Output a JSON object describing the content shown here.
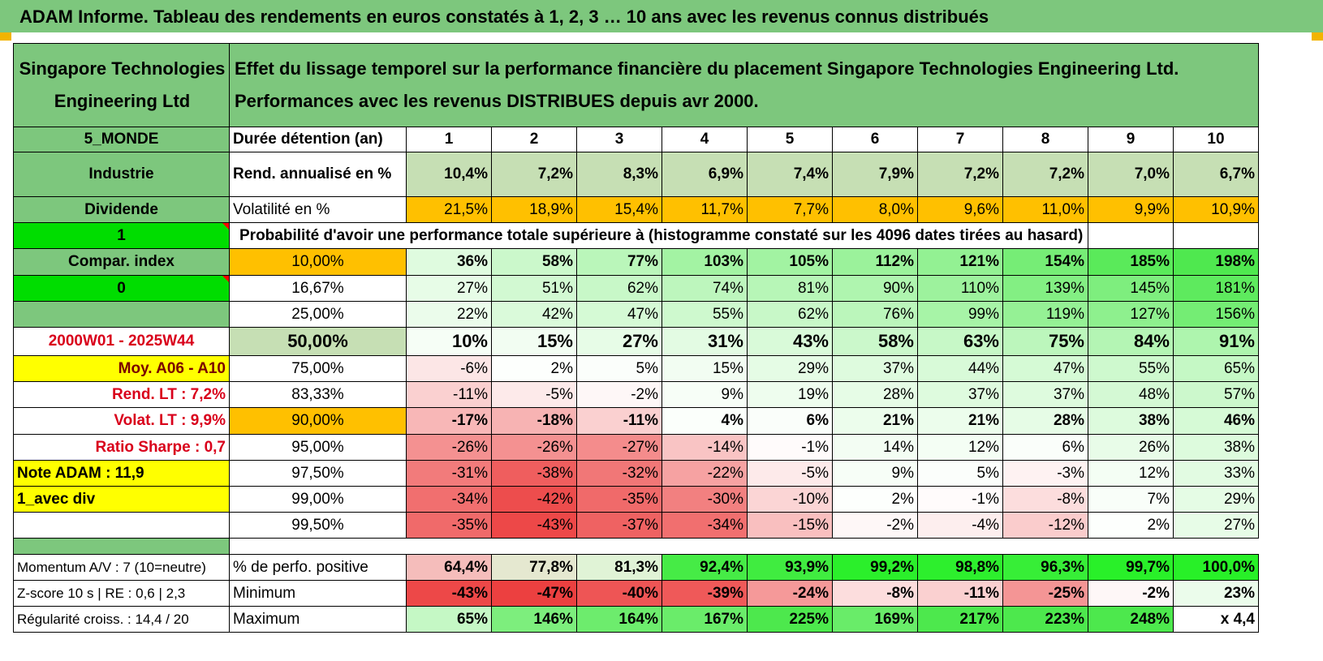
{
  "title": "ADAM Informe. Tableau des rendements en euros constatés à 1, 2, 3 … 10 ans avec les revenus connus distribués",
  "header": {
    "company": "Singapore Technologies Engineering Ltd",
    "description": "Effet du lissage temporel sur la performance financière du placement Singapore Technologies Engineering Ltd. Performances avec les revenus DISTRIBUES depuis avr 2000."
  },
  "side": {
    "region": "5_MONDE",
    "sector": "Industrie",
    "dividend_label": "Dividende",
    "dividend_value": "1",
    "compar_label": "Compar. index",
    "compar_value": "0",
    "period": "2000W01 - 2025W44",
    "moy": "Moy. A06 - A10",
    "rend_lt": "Rend. LT :   7,2%",
    "volat_lt": "Volat. LT :   9,9%",
    "sharpe": "Ratio Sharpe :    0,7",
    "note": "Note ADAM : 11,9",
    "avec_div": "1_avec div",
    "momentum": "Momentum A/V : 7 (10=neutre)",
    "zscore": "Z-score 10 s | RE : 0,6 | 2,3",
    "regularite": "Régularité croiss. : 14,4 / 20"
  },
  "labels": {
    "duree": "Durée détention (an)",
    "rend": "Rend. annualisé en %",
    "vol": "Volatilité en %",
    "proba": "Probabilité d'avoir une performance totale supérieure à (histogramme constaté sur les 4096 dates tirées au hasard)",
    "perfo": "% de perfo. positive",
    "min": "Minimum",
    "max": "Maximum"
  },
  "years": [
    "1",
    "2",
    "3",
    "4",
    "5",
    "6",
    "7",
    "8",
    "9",
    "10"
  ],
  "rend": [
    "10,4%",
    "7,2%",
    "8,3%",
    "6,9%",
    "7,4%",
    "7,9%",
    "7,2%",
    "7,2%",
    "7,0%",
    "6,7%"
  ],
  "vol": [
    "21,5%",
    "18,9%",
    "15,4%",
    "11,7%",
    "7,7%",
    "8,0%",
    "9,6%",
    "11,0%",
    "9,9%",
    "10,9%"
  ],
  "prob_rows": [
    {
      "p": "10,00%",
      "v": [
        "36%",
        "58%",
        "77%",
        "103%",
        "105%",
        "112%",
        "121%",
        "154%",
        "185%",
        "198%"
      ]
    },
    {
      "p": "16,67%",
      "v": [
        "27%",
        "51%",
        "62%",
        "74%",
        "81%",
        "90%",
        "110%",
        "139%",
        "145%",
        "181%"
      ]
    },
    {
      "p": "25,00%",
      "v": [
        "22%",
        "42%",
        "47%",
        "55%",
        "62%",
        "76%",
        "99%",
        "119%",
        "127%",
        "156%"
      ]
    },
    {
      "p": "50,00%",
      "v": [
        "10%",
        "15%",
        "27%",
        "31%",
        "43%",
        "58%",
        "63%",
        "75%",
        "84%",
        "91%"
      ]
    },
    {
      "p": "75,00%",
      "v": [
        "-6%",
        "2%",
        "5%",
        "15%",
        "29%",
        "37%",
        "44%",
        "47%",
        "55%",
        "65%"
      ]
    },
    {
      "p": "83,33%",
      "v": [
        "-11%",
        "-5%",
        "-2%",
        "9%",
        "19%",
        "28%",
        "37%",
        "37%",
        "48%",
        "57%"
      ]
    },
    {
      "p": "90,00%",
      "v": [
        "-17%",
        "-18%",
        "-11%",
        "4%",
        "6%",
        "21%",
        "21%",
        "28%",
        "38%",
        "46%"
      ]
    },
    {
      "p": "95,00%",
      "v": [
        "-26%",
        "-26%",
        "-27%",
        "-14%",
        "-1%",
        "14%",
        "12%",
        "6%",
        "26%",
        "38%"
      ]
    },
    {
      "p": "97,50%",
      "v": [
        "-31%",
        "-38%",
        "-32%",
        "-22%",
        "-5%",
        "9%",
        "5%",
        "-3%",
        "12%",
        "33%"
      ]
    },
    {
      "p": "99,00%",
      "v": [
        "-34%",
        "-42%",
        "-35%",
        "-30%",
        "-10%",
        "2%",
        "-1%",
        "-8%",
        "7%",
        "29%"
      ]
    },
    {
      "p": "99,50%",
      "v": [
        "-35%",
        "-43%",
        "-37%",
        "-34%",
        "-15%",
        "-2%",
        "-4%",
        "-12%",
        "2%",
        "27%"
      ]
    }
  ],
  "perfo": [
    "64,4%",
    "77,8%",
    "81,3%",
    "92,4%",
    "93,9%",
    "99,2%",
    "98,8%",
    "96,3%",
    "99,7%",
    "100,0%"
  ],
  "minimum": [
    "-43%",
    "-47%",
    "-40%",
    "-39%",
    "-24%",
    "-8%",
    "-11%",
    "-25%",
    "-2%",
    "23%"
  ],
  "maximum": [
    "65%",
    "146%",
    "164%",
    "167%",
    "225%",
    "169%",
    "217%",
    "223%",
    "248%",
    "x 4,4"
  ],
  "colors": {
    "dark_green": "#7dc77d",
    "light_green": "#c6dfb4",
    "orange": "#ffc000",
    "yellow": "#ffff00",
    "bright_green": "#00dd00",
    "red_text": "#d9001b"
  }
}
